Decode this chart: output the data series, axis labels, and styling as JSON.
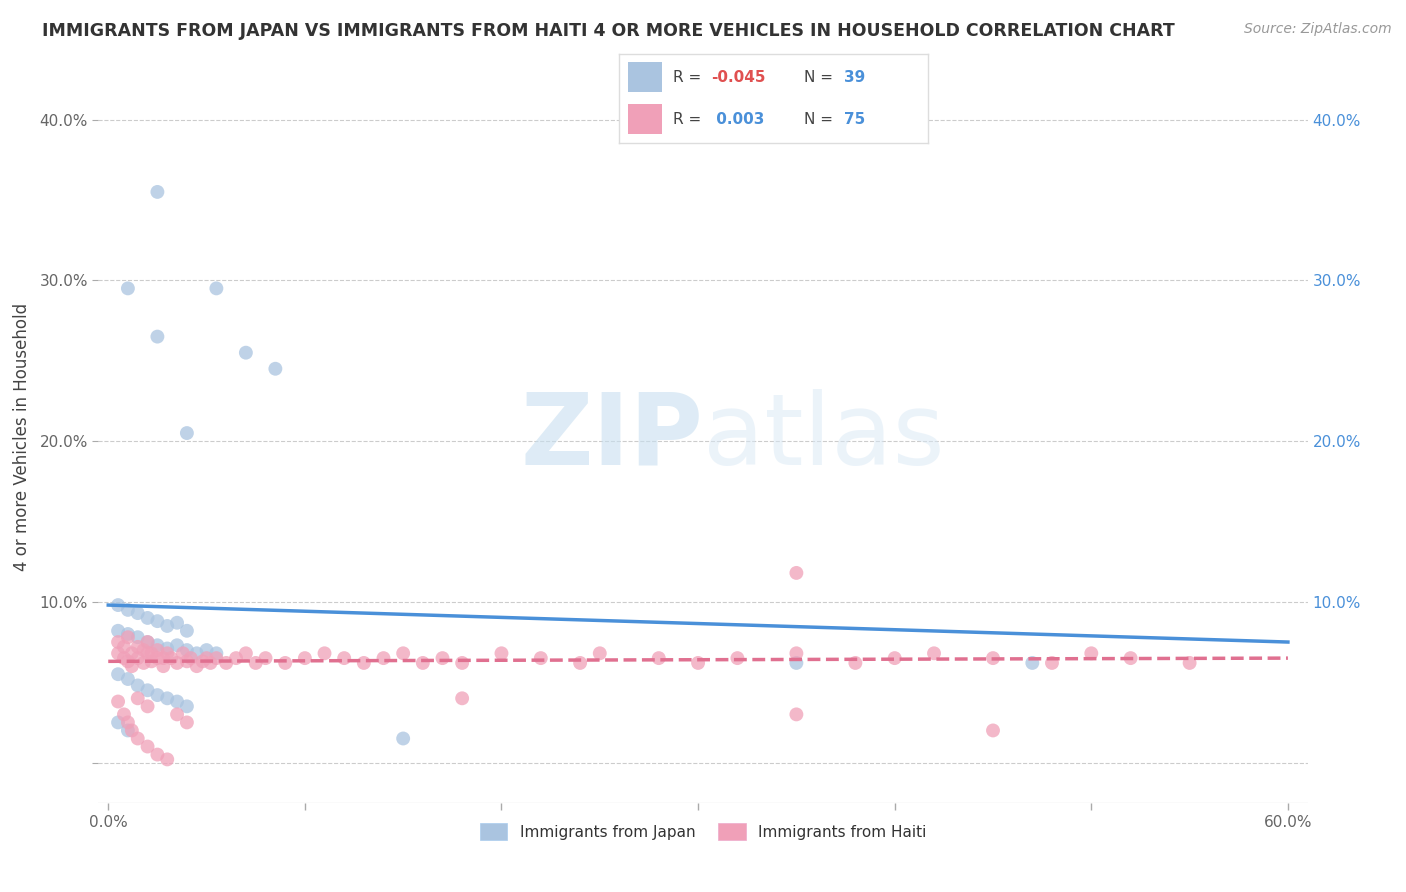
{
  "title": "IMMIGRANTS FROM JAPAN VS IMMIGRANTS FROM HAITI 4 OR MORE VEHICLES IN HOUSEHOLD CORRELATION CHART",
  "source": "Source: ZipAtlas.com",
  "ylabel": "4 or more Vehicles in Household",
  "xlim": [
    0.0,
    0.6
  ],
  "ylim": [
    -0.025,
    0.43
  ],
  "yticks": [
    0.0,
    0.1,
    0.2,
    0.3,
    0.4
  ],
  "ytick_labels_left": [
    "",
    "10.0%",
    "20.0%",
    "30.0%",
    "40.0%"
  ],
  "ytick_labels_right": [
    "",
    "10.0%",
    "20.0%",
    "30.0%",
    "40.0%"
  ],
  "xticks": [
    0.0,
    0.1,
    0.2,
    0.3,
    0.4,
    0.5,
    0.6
  ],
  "xtick_labels": [
    "0.0%",
    "",
    "",
    "",
    "",
    "",
    "60.0%"
  ],
  "japan_color": "#aac4e0",
  "haiti_color": "#f0a0b8",
  "japan_line_color": "#4a90d9",
  "haiti_line_color": "#e07090",
  "R_japan": -0.045,
  "N_japan": 39,
  "R_haiti": 0.003,
  "N_haiti": 75,
  "watermark_zip": "ZIP",
  "watermark_atlas": "atlas",
  "legend_japan": "Immigrants from Japan",
  "legend_haiti": "Immigrants from Haiti",
  "japan_trend_start": 0.098,
  "japan_trend_end": 0.075,
  "haiti_trend_start": 0.063,
  "haiti_trend_end": 0.065
}
